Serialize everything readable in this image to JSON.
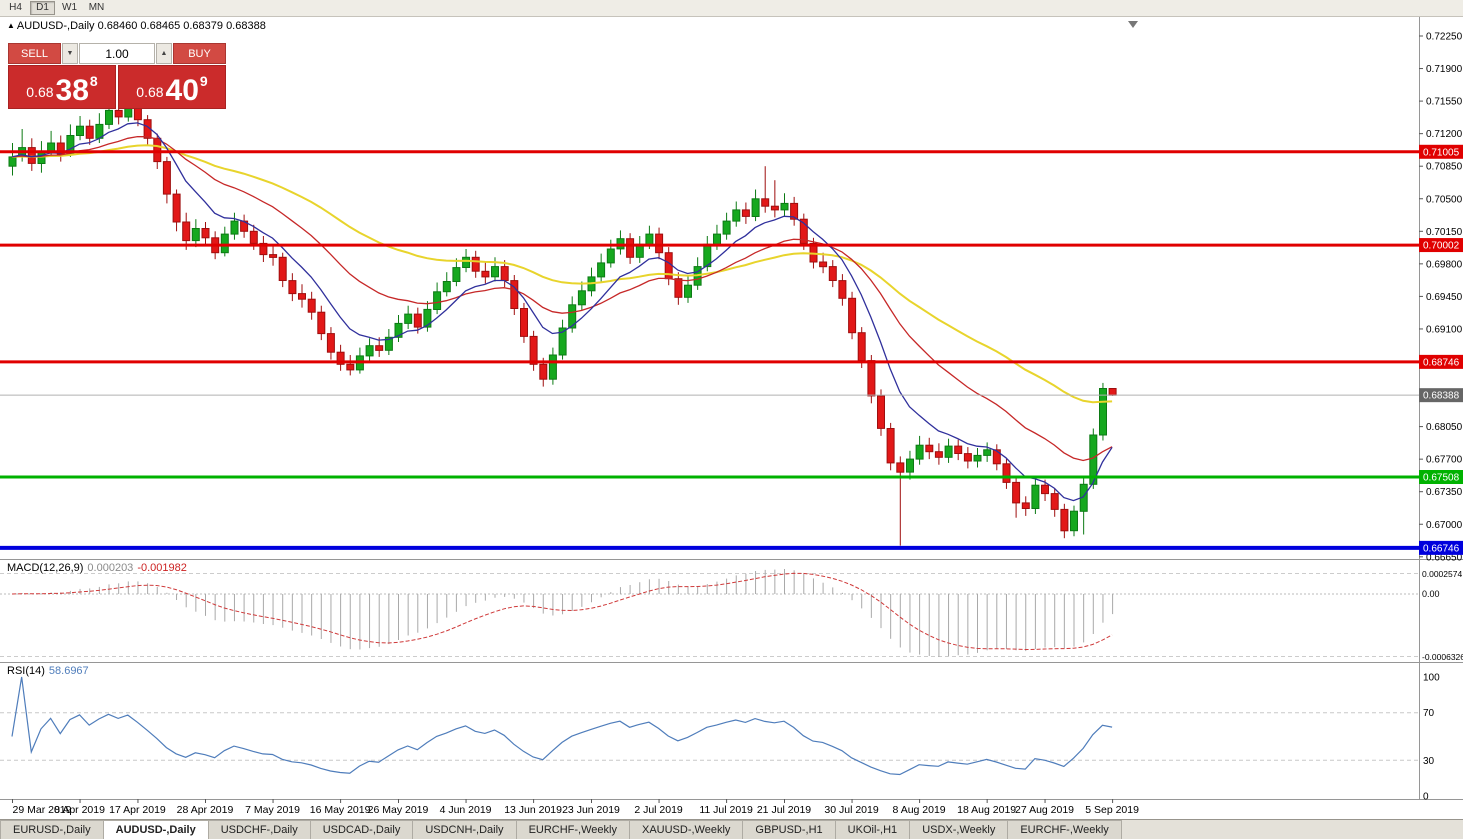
{
  "toolbar": {
    "periods": [
      {
        "label": "H4",
        "active": false
      },
      {
        "label": "D1",
        "active": true
      },
      {
        "label": "W1",
        "active": false
      },
      {
        "label": "MN",
        "active": false
      }
    ]
  },
  "chart": {
    "title_symbol": "AUDUSD-,Daily",
    "title_ohlc": "0.68460 0.68465 0.68379 0.68388"
  },
  "icons": {
    "chart_arrow": "▲",
    "volume_up": "▲",
    "volume_down": "▼"
  },
  "trade_panel": {
    "sell_label": "SELL",
    "buy_label": "BUY",
    "volume": "1.00",
    "sell_price_main": "0.68",
    "sell_price_big": "38",
    "sell_price_sup": "8",
    "buy_price_main": "0.68",
    "buy_price_big": "40",
    "buy_price_sup": "9"
  },
  "current_price": {
    "label": "0.68388",
    "value": 0.68388
  },
  "price_scale": {
    "ticks": [
      "0.72250",
      "0.71900",
      "0.71550",
      "0.71200",
      "0.70850",
      "0.70500",
      "0.70150",
      "0.69800",
      "0.69450",
      "0.69100",
      "0.68750",
      "0.68400",
      "0.68050",
      "0.67700",
      "0.67350",
      "0.67000",
      "0.66650"
    ]
  },
  "hlines": [
    {
      "label": "0.71005",
      "value": 0.71005,
      "color": "#e00000",
      "width": 3
    },
    {
      "label": "0.70002",
      "value": 0.70002,
      "color": "#e00000",
      "width": 3
    },
    {
      "label": "0.68746",
      "value": 0.68746,
      "color": "#e00000",
      "width": 3
    },
    {
      "label": "0.67508",
      "value": 0.67508,
      "color": "#00b200",
      "width": 3
    },
    {
      "label": "0.66746",
      "value": 0.66746,
      "color": "#0000dd",
      "width": 4
    }
  ],
  "macd": {
    "label": "MACD(12,26,9)",
    "value_main": "0.000203",
    "value_signal": "-0.001982",
    "axis": [
      "0.0002574",
      "0.00",
      "-0.0006326"
    ]
  },
  "rsi": {
    "label": "RSI(14)",
    "value": "58.6967",
    "axis": [
      "100",
      "70",
      "30",
      "0"
    ],
    "levels": [
      70,
      30
    ]
  },
  "tabs": [
    {
      "label": "EURUSD-,Daily",
      "active": false
    },
    {
      "label": "AUDUSD-,Daily",
      "active": true
    },
    {
      "label": "USDCHF-,Daily",
      "active": false
    },
    {
      "label": "USDCAD-,Daily",
      "active": false
    },
    {
      "label": "USDCNH-,Daily",
      "active": false
    },
    {
      "label": "EURCHF-,Weekly",
      "active": false
    },
    {
      "label": "XAUUSD-,Weekly",
      "active": false
    },
    {
      "label": "GBPUSD-,H1",
      "active": false
    },
    {
      "label": "UKOil-,H1",
      "active": false
    },
    {
      "label": "USDX-,Weekly",
      "active": false
    },
    {
      "label": "EURCHF-,Weekly",
      "active": false
    }
  ],
  "colors": {
    "bull": "#16a81f",
    "bull_border": "#0c7a14",
    "bear": "#e21818",
    "bear_border": "#9e0e0e",
    "price_line": "#b0b0b0",
    "price_box": "#666666",
    "macd_hist": "#a9a9a9",
    "macd_signal": "#cf3a3a",
    "rsi": "#4f7dbb",
    "separator": "#969696",
    "panel_red": "#cb2b2b",
    "button_red": "#d24a43"
  },
  "chart_data": {
    "type": "candlestick",
    "title": "AUDUSD-,Daily",
    "ylim": [
      0.6665,
      0.7225
    ],
    "x_labels": [
      "29 Mar 2019",
      "8 Apr 2019",
      "17 Apr 2019",
      "28 Apr 2019",
      "7 May 2019",
      "16 May 2019",
      "26 May 2019",
      "4 Jun 2019",
      "13 Jun 2019",
      "23 Jun 2019",
      "2 Jul 2019",
      "11 Jul 2019",
      "21 Jul 2019",
      "30 Jul 2019",
      "8 Aug 2019",
      "18 Aug 2019",
      "27 Aug 2019",
      "5 Sep 2019"
    ],
    "ma_lines": [
      {
        "period": 45,
        "color": "#e8d42c",
        "width": 2
      },
      {
        "period": 21,
        "color": "#c62828",
        "width": 1.3
      },
      {
        "period": 8,
        "color": "#30309c",
        "width": 1.3
      }
    ],
    "indicators": {
      "macd": {
        "fast": 12,
        "slow": 26,
        "signal": 9
      },
      "rsi": {
        "period": 14
      }
    },
    "candles": [
      [
        0.7085,
        0.711,
        0.7075,
        0.7095
      ],
      [
        0.7095,
        0.7125,
        0.709,
        0.7105
      ],
      [
        0.7105,
        0.7115,
        0.708,
        0.7088
      ],
      [
        0.7088,
        0.7112,
        0.7078,
        0.71
      ],
      [
        0.71,
        0.7123,
        0.7095,
        0.711
      ],
      [
        0.711,
        0.7118,
        0.709,
        0.7098
      ],
      [
        0.7098,
        0.713,
        0.7095,
        0.7118
      ],
      [
        0.7118,
        0.7139,
        0.7113,
        0.7128
      ],
      [
        0.7128,
        0.7135,
        0.7108,
        0.7115
      ],
      [
        0.7115,
        0.7142,
        0.711,
        0.713
      ],
      [
        0.713,
        0.7156,
        0.7125,
        0.7145
      ],
      [
        0.7145,
        0.7155,
        0.713,
        0.7138
      ],
      [
        0.7138,
        0.716,
        0.7133,
        0.715
      ],
      [
        0.715,
        0.7158,
        0.7128,
        0.7135
      ],
      [
        0.7135,
        0.714,
        0.7108,
        0.7115
      ],
      [
        0.7115,
        0.712,
        0.7082,
        0.709
      ],
      [
        0.709,
        0.7095,
        0.7045,
        0.7055
      ],
      [
        0.7055,
        0.706,
        0.7015,
        0.7025
      ],
      [
        0.7025,
        0.7035,
        0.6995,
        0.7005
      ],
      [
        0.7005,
        0.7028,
        0.6998,
        0.7018
      ],
      [
        0.7018,
        0.7025,
        0.7,
        0.7008
      ],
      [
        0.7008,
        0.7015,
        0.6985,
        0.6992
      ],
      [
        0.6992,
        0.702,
        0.6988,
        0.7012
      ],
      [
        0.7012,
        0.7035,
        0.7006,
        0.7026
      ],
      [
        0.7026,
        0.7033,
        0.7008,
        0.7015
      ],
      [
        0.7015,
        0.7022,
        0.6995,
        0.7002
      ],
      [
        0.7002,
        0.701,
        0.6982,
        0.699
      ],
      [
        0.699,
        0.7,
        0.6978,
        0.6987
      ],
      [
        0.6987,
        0.6992,
        0.6955,
        0.6962
      ],
      [
        0.6962,
        0.697,
        0.694,
        0.6948
      ],
      [
        0.6948,
        0.6958,
        0.6933,
        0.6942
      ],
      [
        0.6942,
        0.695,
        0.692,
        0.6928
      ],
      [
        0.6928,
        0.6935,
        0.6898,
        0.6905
      ],
      [
        0.6905,
        0.6912,
        0.6877,
        0.6885
      ],
      [
        0.6885,
        0.6893,
        0.6865,
        0.6872
      ],
      [
        0.6872,
        0.6882,
        0.686,
        0.6866
      ],
      [
        0.6866,
        0.689,
        0.6862,
        0.6881
      ],
      [
        0.6881,
        0.69,
        0.6875,
        0.6892
      ],
      [
        0.6892,
        0.6901,
        0.688,
        0.6887
      ],
      [
        0.6887,
        0.691,
        0.6882,
        0.6901
      ],
      [
        0.6901,
        0.6925,
        0.6896,
        0.6916
      ],
      [
        0.6916,
        0.6935,
        0.691,
        0.6926
      ],
      [
        0.6926,
        0.6933,
        0.6905,
        0.6912
      ],
      [
        0.6912,
        0.694,
        0.6907,
        0.6931
      ],
      [
        0.6931,
        0.696,
        0.6926,
        0.695
      ],
      [
        0.695,
        0.6971,
        0.6945,
        0.6961
      ],
      [
        0.6961,
        0.6986,
        0.6956,
        0.6976
      ],
      [
        0.6976,
        0.6996,
        0.6971,
        0.6987
      ],
      [
        0.6987,
        0.6994,
        0.6965,
        0.6972
      ],
      [
        0.6972,
        0.6982,
        0.6959,
        0.6966
      ],
      [
        0.6966,
        0.6987,
        0.6961,
        0.6977
      ],
      [
        0.6977,
        0.6984,
        0.6955,
        0.6962
      ],
      [
        0.6962,
        0.6968,
        0.6925,
        0.6932
      ],
      [
        0.6932,
        0.6938,
        0.6895,
        0.6902
      ],
      [
        0.6902,
        0.6908,
        0.6865,
        0.6872
      ],
      [
        0.6872,
        0.6879,
        0.6848,
        0.6856
      ],
      [
        0.6856,
        0.689,
        0.685,
        0.6882
      ],
      [
        0.6882,
        0.692,
        0.6877,
        0.6911
      ],
      [
        0.6911,
        0.6945,
        0.6906,
        0.6936
      ],
      [
        0.6936,
        0.6961,
        0.693,
        0.6951
      ],
      [
        0.6951,
        0.6976,
        0.6945,
        0.6966
      ],
      [
        0.6966,
        0.6991,
        0.6961,
        0.6981
      ],
      [
        0.6981,
        0.7006,
        0.6976,
        0.6996
      ],
      [
        0.6996,
        0.7016,
        0.699,
        0.7007
      ],
      [
        0.7007,
        0.7013,
        0.698,
        0.6987
      ],
      [
        0.6987,
        0.701,
        0.6981,
        0.7001
      ],
      [
        0.7001,
        0.7021,
        0.6996,
        0.7012
      ],
      [
        0.7012,
        0.7019,
        0.6985,
        0.6992
      ],
      [
        0.6992,
        0.6998,
        0.6957,
        0.6964
      ],
      [
        0.6964,
        0.6971,
        0.6936,
        0.6944
      ],
      [
        0.6944,
        0.6967,
        0.6938,
        0.6957
      ],
      [
        0.6957,
        0.6987,
        0.6952,
        0.6977
      ],
      [
        0.6977,
        0.701,
        0.6972,
        0.7001
      ],
      [
        0.7001,
        0.7022,
        0.6995,
        0.7012
      ],
      [
        0.7012,
        0.7035,
        0.7006,
        0.7026
      ],
      [
        0.7026,
        0.7047,
        0.702,
        0.7038
      ],
      [
        0.7038,
        0.7046,
        0.7023,
        0.7031
      ],
      [
        0.7031,
        0.706,
        0.7026,
        0.705
      ],
      [
        0.705,
        0.7085,
        0.7035,
        0.7042
      ],
      [
        0.7042,
        0.707,
        0.703,
        0.7038
      ],
      [
        0.7038,
        0.7056,
        0.7031,
        0.7045
      ],
      [
        0.7045,
        0.7052,
        0.7021,
        0.7028
      ],
      [
        0.7028,
        0.7034,
        0.6995,
        0.7002
      ],
      [
        0.7002,
        0.7008,
        0.6975,
        0.6982
      ],
      [
        0.6982,
        0.6992,
        0.697,
        0.6977
      ],
      [
        0.6977,
        0.6984,
        0.6955,
        0.6962
      ],
      [
        0.6962,
        0.6969,
        0.6935,
        0.6943
      ],
      [
        0.6943,
        0.695,
        0.6899,
        0.6906
      ],
      [
        0.6906,
        0.6912,
        0.6868,
        0.6876
      ],
      [
        0.6876,
        0.6882,
        0.683,
        0.6838
      ],
      [
        0.6838,
        0.6845,
        0.6795,
        0.6803
      ],
      [
        0.6803,
        0.6809,
        0.6758,
        0.6766
      ],
      [
        0.6766,
        0.6773,
        0.6677,
        0.6756
      ],
      [
        0.6756,
        0.6779,
        0.6748,
        0.677
      ],
      [
        0.677,
        0.6795,
        0.6764,
        0.6785
      ],
      [
        0.6785,
        0.6793,
        0.677,
        0.6778
      ],
      [
        0.6778,
        0.6787,
        0.6764,
        0.6772
      ],
      [
        0.6772,
        0.6792,
        0.6766,
        0.6784
      ],
      [
        0.6784,
        0.6791,
        0.6769,
        0.6776
      ],
      [
        0.6776,
        0.6783,
        0.676,
        0.6768
      ],
      [
        0.6768,
        0.6782,
        0.6761,
        0.6774
      ],
      [
        0.6774,
        0.6788,
        0.6767,
        0.678
      ],
      [
        0.678,
        0.6786,
        0.6758,
        0.6765
      ],
      [
        0.6765,
        0.6771,
        0.6738,
        0.6745
      ],
      [
        0.6745,
        0.6751,
        0.6707,
        0.6723
      ],
      [
        0.6723,
        0.673,
        0.6709,
        0.6717
      ],
      [
        0.6717,
        0.6749,
        0.6711,
        0.6742
      ],
      [
        0.6742,
        0.6748,
        0.6725,
        0.6733
      ],
      [
        0.6733,
        0.6739,
        0.6708,
        0.6716
      ],
      [
        0.6716,
        0.6722,
        0.6685,
        0.6693
      ],
      [
        0.6693,
        0.672,
        0.6687,
        0.6714
      ],
      [
        0.6714,
        0.675,
        0.6689,
        0.6743
      ],
      [
        0.6743,
        0.6803,
        0.6738,
        0.6796
      ],
      [
        0.6796,
        0.6852,
        0.679,
        0.6846
      ],
      [
        0.6846,
        0.68465,
        0.68379,
        0.68388
      ]
    ]
  }
}
